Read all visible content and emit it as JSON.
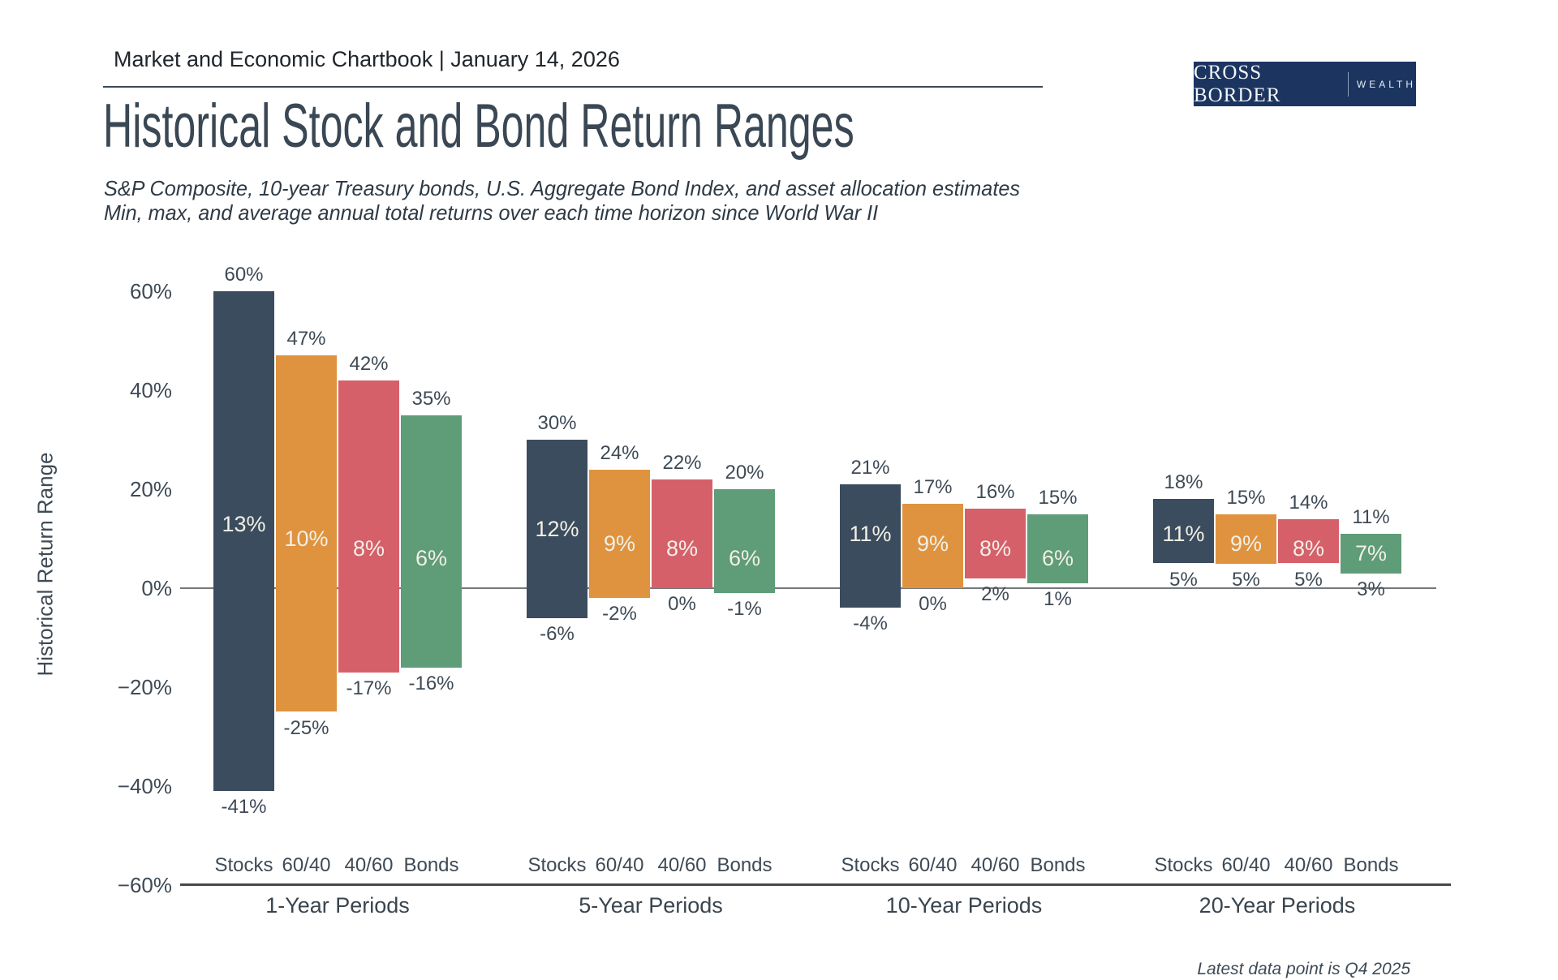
{
  "header": {
    "kicker": "Market and Economic Chartbook | January 14, 2026"
  },
  "logo": {
    "primary": "CROSS BORDER",
    "secondary": "WEALTH",
    "background_color": "#1b3560"
  },
  "title": "Historical Stock and Bond Return Ranges",
  "subtitle_line1": "S&P Composite, 10-year Treasury bonds, U.S. Aggregate Bond Index, and asset allocation estimates",
  "subtitle_line2": "Min, max, and average annual total returns over each time horizon since World War II",
  "footnote": "Latest data point is Q4 2025",
  "chart_data": {
    "type": "bar",
    "subtype": "floating-range-bars",
    "title": "Historical Stock and Bond Return Ranges",
    "ylabel": "Historical Return Range",
    "ylim": [
      -60,
      60
    ],
    "grid": false,
    "legend": "none",
    "yticks": [
      60,
      40,
      20,
      0,
      -20,
      -40,
      -60
    ],
    "ytick_labels": [
      "60%",
      "40%",
      "20%",
      "0%",
      "−20%",
      "−40%",
      "−60%"
    ],
    "series_names": [
      "Stocks",
      "60/40",
      "40/60",
      "Bonds"
    ],
    "series_colors": [
      "#3b4c5e",
      "#df933e",
      "#d5606a",
      "#5f9c78"
    ],
    "label_colors": {
      "dark": "#3e4a55",
      "light": "#f2efe6"
    },
    "groups": [
      {
        "label": "1-Year Periods",
        "bars": [
          {
            "name": "Stocks",
            "max": 60,
            "avg": 13,
            "min": -41
          },
          {
            "name": "60/40",
            "max": 47,
            "avg": 10,
            "min": -25
          },
          {
            "name": "40/60",
            "max": 42,
            "avg": 8,
            "min": -17
          },
          {
            "name": "Bonds",
            "max": 35,
            "avg": 6,
            "min": -16
          }
        ]
      },
      {
        "label": "5-Year Periods",
        "bars": [
          {
            "name": "Stocks",
            "max": 30,
            "avg": 12,
            "min": -6
          },
          {
            "name": "60/40",
            "max": 24,
            "avg": 9,
            "min": -2
          },
          {
            "name": "40/60",
            "max": 22,
            "avg": 8,
            "min": 0
          },
          {
            "name": "Bonds",
            "max": 20,
            "avg": 6,
            "min": -1
          }
        ]
      },
      {
        "label": "10-Year Periods",
        "bars": [
          {
            "name": "Stocks",
            "max": 21,
            "avg": 11,
            "min": -4
          },
          {
            "name": "60/40",
            "max": 17,
            "avg": 9,
            "min": 0
          },
          {
            "name": "40/60",
            "max": 16,
            "avg": 8,
            "min": 2
          },
          {
            "name": "Bonds",
            "max": 15,
            "avg": 6,
            "min": 1
          }
        ]
      },
      {
        "label": "20-Year Periods",
        "bars": [
          {
            "name": "Stocks",
            "max": 18,
            "avg": 11,
            "min": 5
          },
          {
            "name": "60/40",
            "max": 15,
            "avg": 9,
            "min": 5
          },
          {
            "name": "40/60",
            "max": 14,
            "avg": 8,
            "min": 5
          },
          {
            "name": "Bonds",
            "max": 11,
            "avg": 7,
            "min": 3
          }
        ]
      }
    ]
  }
}
